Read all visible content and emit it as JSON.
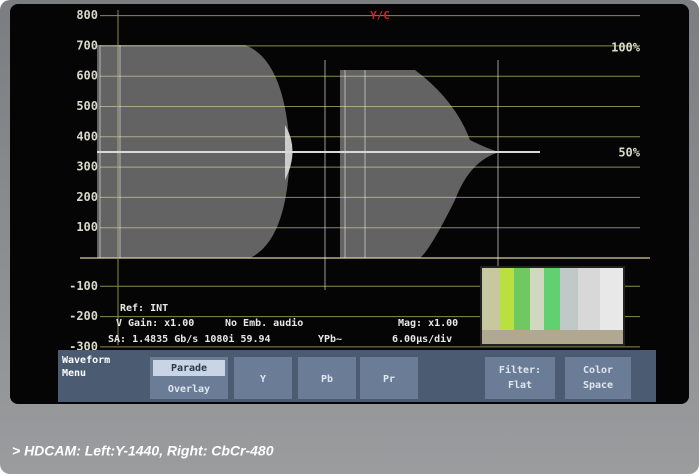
{
  "screen": {
    "indicator": "Y/C",
    "scale_labels": [
      "800",
      "700",
      "600",
      "500",
      "400",
      "300",
      "200",
      "100",
      "-100",
      "-200",
      "-300"
    ],
    "percent_labels": [
      "100%",
      "50%"
    ],
    "status": {
      "ref": "Ref: INT",
      "v_gain": "V Gain: x1.00",
      "audio": "No Emb. audio",
      "mag": "Mag: x1.00",
      "signal": "SA: 1.4835 Gb/s 1080i 59.94",
      "channel": "YPb~",
      "sweep": "6.00μs/div"
    },
    "menu": {
      "title": "Waveform Menu",
      "mode_selected": "Parade",
      "mode_other": "Overlay",
      "buttons": [
        "Y",
        "Pb",
        "Pr"
      ],
      "filter": "Filter: Flat",
      "color_space": "Color Space"
    }
  },
  "caption": "> HDCAM: Left:Y-1440, Right: CbCr-480"
}
